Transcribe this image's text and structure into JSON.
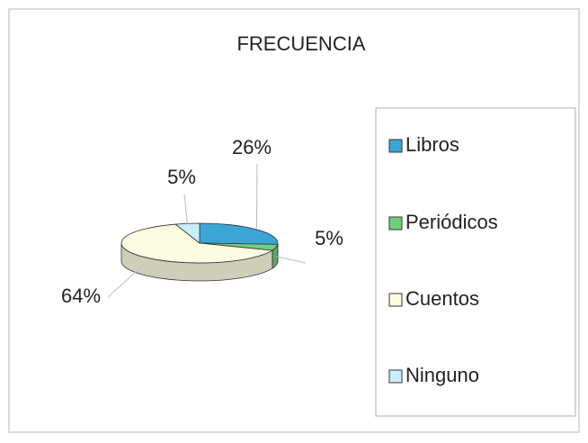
{
  "chart_data": {
    "type": "pie",
    "title": "FRECUENCIA",
    "categories": [
      "Libros",
      "Periódicos",
      "Cuentos",
      "Ninguno"
    ],
    "values": [
      26,
      5,
      64,
      5
    ],
    "value_labels": [
      "26%",
      "5%",
      "64%",
      "5%"
    ],
    "colors": [
      "#3aa6d6",
      "#6fcf7f",
      "#fbfbe2",
      "#c9eefc"
    ],
    "legend": "right"
  }
}
